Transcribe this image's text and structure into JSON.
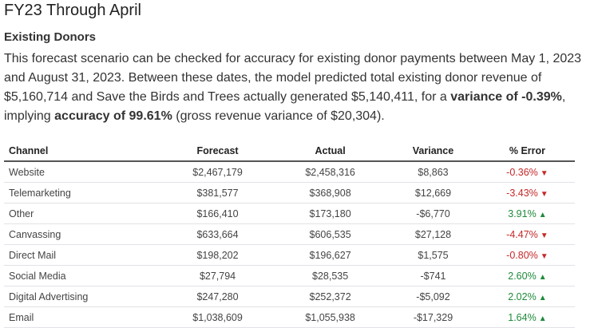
{
  "title": "FY23 Through April",
  "subtitle": "Existing Donors",
  "paragraph": {
    "text1": "This forecast scenario can be checked for accuracy for existing donor payments between May 1, 2023 and August 31, 2023. Between these dates, the model predicted total existing donor revenue of $5,160,714 and Save the Birds and Trees actually generated $5,140,411, for a ",
    "bold1": "variance of -0.39%",
    "text2": ", implying ",
    "bold2": "accuracy of 99.61%",
    "text3": " (gross revenue variance of $20,304)."
  },
  "table": {
    "headers": [
      "Channel",
      "Forecast",
      "Actual",
      "Variance",
      "% Error"
    ],
    "rows": [
      [
        "Website",
        "$2,467,179",
        "$2,458,316",
        "$8,863",
        "-0.36%",
        "down"
      ],
      [
        "Telemarketing",
        "$381,577",
        "$368,908",
        "$12,669",
        "-3.43%",
        "down"
      ],
      [
        "Other",
        "$166,410",
        "$173,180",
        "-$6,770",
        "3.91%",
        "up"
      ],
      [
        "Canvassing",
        "$633,664",
        "$606,535",
        "$27,128",
        "-4.47%",
        "down"
      ],
      [
        "Direct Mail",
        "$198,202",
        "$196,627",
        "$1,575",
        "-0.80%",
        "down"
      ],
      [
        "Social Media",
        "$27,794",
        "$28,535",
        "-$741",
        "2.60%",
        "up"
      ],
      [
        "Digital Advertising",
        "$247,280",
        "$252,372",
        "-$5,092",
        "2.02%",
        "up"
      ],
      [
        "Email",
        "$1,038,609",
        "$1,055,938",
        "-$17,329",
        "1.64%",
        "up"
      ]
    ]
  },
  "colors": {
    "negative": "#c62828",
    "positive": "#1e8a3a"
  }
}
